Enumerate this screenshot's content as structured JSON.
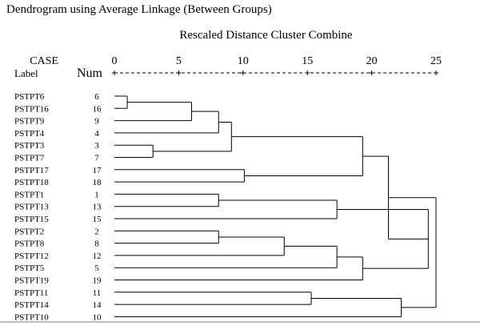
{
  "title": "Dendrogram using Average Linkage (Between Groups)",
  "subtitle": "Rescaled Distance Cluster Combine",
  "headers": {
    "case": "CASE",
    "label": "Label",
    "num": "Num"
  },
  "axis": {
    "scale_line": "+---------+---------+---------+---------+---------+"
  },
  "chart_data": {
    "type": "dendrogram",
    "title": "Dendrogram using Average Linkage (Between Groups)",
    "xlabel": "Rescaled Distance Cluster Combine",
    "xlim": [
      0,
      25
    ],
    "xticks": [
      0,
      5,
      10,
      15,
      20,
      25
    ],
    "cases": [
      {
        "label": "PSTPT6",
        "num": "6"
      },
      {
        "label": "PSTPT16",
        "num": "16"
      },
      {
        "label": "PSTPT9",
        "num": "9"
      },
      {
        "label": "PSTPT4",
        "num": "4"
      },
      {
        "label": "PSTPT3",
        "num": "3"
      },
      {
        "label": "PSTPT7",
        "num": "7"
      },
      {
        "label": "PSTPT17",
        "num": "17"
      },
      {
        "label": "PSTPT18",
        "num": "18"
      },
      {
        "label": "PSTPT1",
        "num": "1"
      },
      {
        "label": "PSTPT13",
        "num": "13"
      },
      {
        "label": "PSTPT15",
        "num": "15"
      },
      {
        "label": "PSTPT2",
        "num": "2"
      },
      {
        "label": "PSTPT8",
        "num": "8"
      },
      {
        "label": "PSTPT12",
        "num": "12"
      },
      {
        "label": "PSTPT5",
        "num": "5"
      },
      {
        "label": "PSTPT19",
        "num": "19"
      },
      {
        "label": "PSTPT11",
        "num": "11"
      },
      {
        "label": "PSTPT14",
        "num": "14"
      },
      {
        "label": "PSTPT10",
        "num": "10"
      }
    ],
    "merges": [
      {
        "a": "PSTPT6",
        "b": "PSTPT16",
        "distance": 1.0,
        "id": "m1"
      },
      {
        "a": "m1",
        "b": "PSTPT9",
        "distance": 6.0,
        "id": "m2"
      },
      {
        "a": "m2",
        "b": "PSTPT4",
        "distance": 8.1,
        "id": "m3"
      },
      {
        "a": "PSTPT3",
        "b": "PSTPT7",
        "distance": 3.0,
        "id": "m4"
      },
      {
        "a": "m3",
        "b": "m4",
        "distance": 9.1,
        "id": "m5"
      },
      {
        "a": "PSTPT17",
        "b": "PSTPT18",
        "distance": 10.1,
        "id": "m6"
      },
      {
        "a": "m5",
        "b": "m6",
        "distance": 19.3,
        "id": "m7"
      },
      {
        "a": "PSTPT1",
        "b": "PSTPT13",
        "distance": 8.1,
        "id": "m8"
      },
      {
        "a": "m8",
        "b": "PSTPT15",
        "distance": 17.3,
        "id": "m9"
      },
      {
        "a": "PSTPT2",
        "b": "PSTPT8",
        "distance": 8.1,
        "id": "m10"
      },
      {
        "a": "m10",
        "b": "PSTPT12",
        "distance": 13.2,
        "id": "m11"
      },
      {
        "a": "m11",
        "b": "PSTPT5",
        "distance": 17.3,
        "id": "m12"
      },
      {
        "a": "m12",
        "b": "PSTPT19",
        "distance": 19.3,
        "id": "m13"
      },
      {
        "a": "m9",
        "b": "m13",
        "distance": 24.4,
        "id": "m14"
      },
      {
        "a": "m7",
        "b": "m14",
        "distance": 21.3,
        "id": "m15"
      },
      {
        "a": "PSTPT11",
        "b": "PSTPT14",
        "distance": 15.3,
        "id": "m16"
      },
      {
        "a": "m16",
        "b": "PSTPT10",
        "distance": 22.3,
        "id": "m17"
      },
      {
        "a": "m15",
        "b": "m17",
        "distance": 25.0,
        "id": "m18"
      }
    ]
  }
}
